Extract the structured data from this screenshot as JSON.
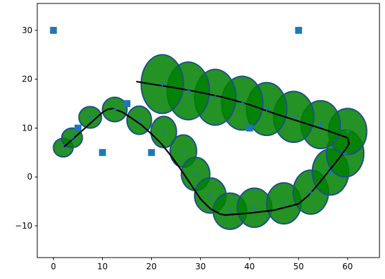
{
  "chart_data": {
    "type": "scatter",
    "title": "",
    "xlabel": "",
    "ylabel": "",
    "xlim": [
      -3.3,
      66.5
    ],
    "ylim": [
      -16.5,
      35.5
    ],
    "x_ticks": [
      0,
      10,
      20,
      30,
      40,
      50,
      60
    ],
    "y_ticks": [
      -10,
      0,
      10,
      20,
      30
    ],
    "grid": false,
    "colors": {
      "ellipse_fill": "#008000",
      "ellipse_edge": "#1f4e8c",
      "marker": "#1f77b4",
      "path": "#000000"
    },
    "square_points": {
      "marker": "square",
      "x": [
        0,
        5,
        10,
        15,
        20,
        40,
        50
      ],
      "y": [
        30,
        10,
        5,
        15,
        5,
        10,
        30
      ]
    },
    "path_line": {
      "x": [
        2,
        4,
        6,
        8,
        10,
        11,
        12,
        14,
        16,
        18,
        20,
        22,
        24,
        26,
        28,
        30,
        32,
        34,
        35,
        40,
        45,
        50,
        52,
        54,
        56,
        58,
        59.5,
        60.3,
        60,
        55,
        50,
        45,
        40,
        35,
        30,
        25,
        20,
        17
      ],
      "y": [
        6,
        7.8,
        9.6,
        11.4,
        13.2,
        13.8,
        14,
        13.3,
        12,
        10.6,
        8.8,
        6.8,
        4.3,
        1.5,
        -1.5,
        -4.5,
        -6.5,
        -7.6,
        -7.8,
        -7.4,
        -6.8,
        -5.5,
        -3.8,
        -1.5,
        1,
        3.5,
        5.5,
        6.8,
        8,
        9.8,
        11.4,
        13,
        14.8,
        16.2,
        17.3,
        18.2,
        19,
        19.5
      ]
    },
    "ellipses": {
      "x": [
        2,
        3.8,
        7.5,
        12.5,
        17.5,
        22.5,
        26.5,
        29,
        32,
        36,
        41,
        47,
        52.5,
        56.5,
        59.5,
        60,
        54.5,
        49,
        43.5,
        38.5,
        33,
        27.5,
        22.2
      ],
      "y": [
        6,
        8,
        12.2,
        13.8,
        11.6,
        9.2,
        5.3,
        0.6,
        -3.8,
        -7,
        -6.3,
        -5.4,
        -3.1,
        1,
        4.8,
        9.3,
        10.7,
        12.3,
        13.9,
        15.1,
        16.3,
        17.6,
        19
      ],
      "width": [
        4,
        4.2,
        4.6,
        5,
        5,
        5.2,
        5.4,
        5.8,
        6.4,
        6.8,
        7,
        7,
        7.2,
        7.4,
        7.6,
        7.8,
        8,
        8.2,
        8.2,
        8.4,
        8.4,
        8.6,
        8.6
      ],
      "height": [
        3.8,
        4,
        4.4,
        5,
        5.8,
        6.4,
        6.6,
        6.8,
        7.2,
        7.4,
        8,
        8.4,
        9,
        9.4,
        9.6,
        9.4,
        9.8,
        10.4,
        10.8,
        11,
        11.4,
        11.8,
        12
      ]
    }
  }
}
